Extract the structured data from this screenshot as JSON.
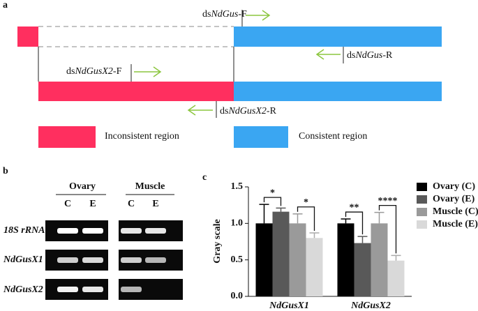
{
  "panel_a": {
    "label": "a",
    "primers": [
      {
        "prefix": "ds",
        "gene": "NdGus",
        "suffix": "-F"
      },
      {
        "prefix": "ds",
        "gene": "NdGus",
        "suffix": "-R"
      },
      {
        "prefix": "ds",
        "gene": "NdGusX2",
        "suffix": "-F"
      },
      {
        "prefix": "ds",
        "gene": "NdGusX2",
        "suffix": "-R"
      }
    ],
    "legend": [
      "Inconsistent region",
      "Consistent region"
    ]
  },
  "panel_b": {
    "label": "b",
    "tissues": [
      "Ovary",
      "Muscle"
    ],
    "lanes": [
      "C",
      "E",
      "C",
      "E"
    ],
    "genes": [
      "18S rRNA",
      "NdGusX1",
      "NdGusX2"
    ]
  },
  "panel_c_label": "c",
  "chart_data": {
    "type": "bar",
    "ylabel": "Gray scale",
    "categories": [
      "NdGusX1",
      "NdGusX2"
    ],
    "series": [
      {
        "name": "Ovary (C)",
        "color": "#000000",
        "values": [
          1.0,
          1.0
        ],
        "errors": [
          0.26,
          0.06
        ]
      },
      {
        "name": "Ovary (E)",
        "color": "#595959",
        "values": [
          1.16,
          0.73
        ],
        "errors": [
          0.05,
          0.09
        ]
      },
      {
        "name": "Muscle (C)",
        "color": "#9a9a9a",
        "values": [
          1.0,
          1.0
        ],
        "errors": [
          0.13,
          0.15
        ]
      },
      {
        "name": "Muscle (E)",
        "color": "#d9d9d9",
        "values": [
          0.8,
          0.49
        ],
        "errors": [
          0.07,
          0.07
        ]
      }
    ],
    "annotations": [
      [
        "*",
        "*"
      ],
      [
        "**",
        "****"
      ]
    ],
    "ylim": [
      0,
      1.5
    ],
    "yticks": [
      {
        "value": 0,
        "label": "0.0"
      },
      {
        "value": 0.5,
        "label": "0.5"
      },
      {
        "value": 1,
        "label": "1.0"
      },
      {
        "value": 1.5,
        "label": "1.5"
      }
    ],
    "legend": "right"
  }
}
